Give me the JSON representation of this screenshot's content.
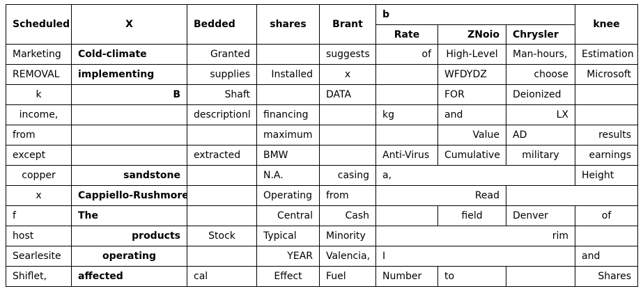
{
  "headers": {
    "col1": "Scheduled",
    "col2": "X",
    "col3": "Bedded",
    "col4": "shares",
    "col5": "Brant",
    "group": "b",
    "sub1": "Rate",
    "sub2": "ZNoio",
    "sub3": "Chrysler",
    "col9": "knee"
  },
  "rows": [
    [
      "Marketing",
      "Cold-climate",
      "Granted",
      "",
      "suggests",
      "of",
      "High-Level",
      "Man-hours,",
      "Estimation"
    ],
    [
      "REMOVAL",
      "implementing",
      "supplies",
      "Installed",
      "x",
      "",
      "WFDYDZ",
      "choose",
      "Microsoft"
    ],
    [
      "k",
      "B",
      "Shaft",
      "",
      "DATA",
      "",
      "FOR",
      "Deionized",
      ""
    ],
    [
      "income,",
      "",
      "descriptionl",
      "financing",
      "",
      "kg",
      "and",
      "LX",
      ""
    ],
    [
      "from",
      "",
      "",
      "maximum",
      "",
      "",
      "Value",
      "AD",
      "results"
    ],
    [
      "except",
      "",
      "extracted",
      "BMW",
      "",
      "Anti-Virus",
      "Cumulative",
      "military",
      "earnings"
    ],
    [
      "copper",
      "sandstone",
      "",
      "N.A.",
      "casing",
      "a,",
      "Height"
    ],
    [
      "x",
      "Cappiello-Rushmore",
      "",
      "Operating",
      "from",
      "Read",
      ""
    ],
    [
      "f",
      "The",
      "",
      "Central",
      "Cash",
      "",
      "field",
      "Denver",
      "of"
    ],
    [
      "host",
      "products",
      "Stock",
      "Typical",
      "Minority",
      "rim",
      ""
    ],
    [
      "Searlesite",
      "operating",
      "",
      "YEAR",
      "Valencia,",
      "I",
      "and"
    ],
    [
      "Shiflet,",
      "affected",
      "cal",
      "Effect",
      "Fuel",
      "Number",
      "to",
      "",
      "Shares"
    ]
  ]
}
